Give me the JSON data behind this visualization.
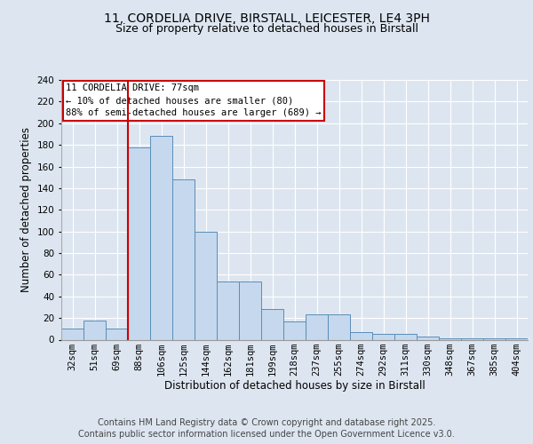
{
  "title_line1": "11, CORDELIA DRIVE, BIRSTALL, LEICESTER, LE4 3PH",
  "title_line2": "Size of property relative to detached houses in Birstall",
  "xlabel": "Distribution of detached houses by size in Birstall",
  "ylabel": "Number of detached properties",
  "categories": [
    "32sqm",
    "51sqm",
    "69sqm",
    "88sqm",
    "106sqm",
    "125sqm",
    "144sqm",
    "162sqm",
    "181sqm",
    "199sqm",
    "218sqm",
    "237sqm",
    "255sqm",
    "274sqm",
    "292sqm",
    "311sqm",
    "330sqm",
    "348sqm",
    "367sqm",
    "385sqm",
    "404sqm"
  ],
  "values": [
    10,
    18,
    10,
    178,
    188,
    148,
    100,
    54,
    54,
    28,
    17,
    23,
    23,
    7,
    5,
    5,
    3,
    1,
    1,
    1,
    1
  ],
  "bar_color": "#c5d8ed",
  "bar_edge_color": "#5b8db8",
  "highlight_bar_index": 2,
  "highlight_color": "#cc0000",
  "annotation_text": "11 CORDELIA DRIVE: 77sqm\n← 10% of detached houses are smaller (80)\n88% of semi-detached houses are larger (689) →",
  "annotation_box_color": "#ffffff",
  "annotation_box_edge_color": "#cc0000",
  "ylim": [
    0,
    240
  ],
  "yticks": [
    0,
    20,
    40,
    60,
    80,
    100,
    120,
    140,
    160,
    180,
    200,
    220,
    240
  ],
  "footer_line1": "Contains HM Land Registry data © Crown copyright and database right 2025.",
  "footer_line2": "Contains public sector information licensed under the Open Government Licence v3.0.",
  "background_color": "#dde6f0",
  "plot_bg_color": "#dde6f0",
  "grid_color": "#ffffff",
  "title_fontsize": 10,
  "subtitle_fontsize": 9,
  "axis_label_fontsize": 8.5,
  "tick_fontsize": 7.5,
  "footer_fontsize": 7
}
